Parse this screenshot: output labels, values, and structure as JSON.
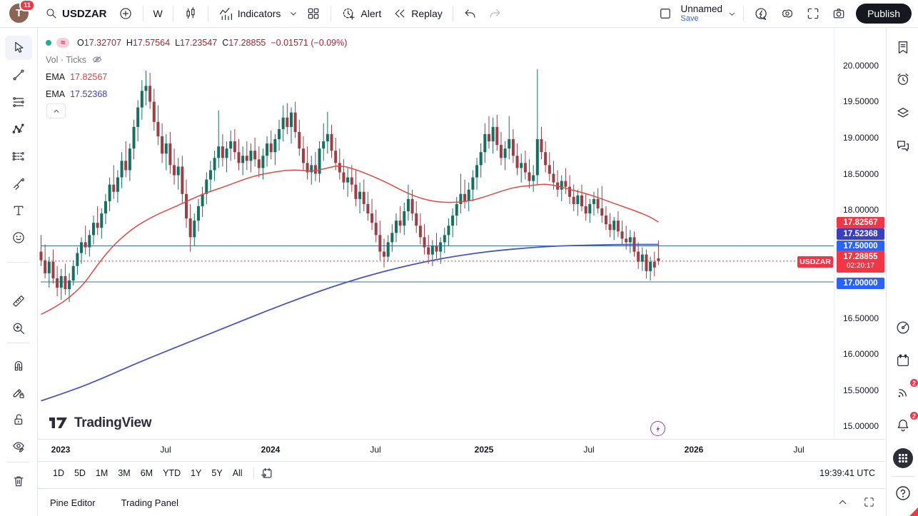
{
  "header": {
    "avatar_initial": "T",
    "notification_count": "11",
    "symbol": "USDZAR",
    "timeframe": "W",
    "indicators_label": "Indicators",
    "alert_label": "Alert",
    "replay_label": "Replay",
    "layout_name": "Unnamed",
    "save_label": "Save",
    "publish_label": "Publish"
  },
  "legend": {
    "ohlc": {
      "o_label": "O",
      "o": "17.32707",
      "h_label": "H",
      "h": "17.57564",
      "l_label": "L",
      "l": "17.23547",
      "c_label": "C",
      "c": "17.28855",
      "change": "−0.01571 (−0.09%)",
      "approx_badge": "≈"
    },
    "volume_label": "Vol · Ticks",
    "ema1_label": "EMA",
    "ema1_value": "17.82567",
    "ema2_label": "EMA",
    "ema2_value": "17.52368"
  },
  "watermark_text": "TradingView",
  "price_scale": {
    "ticks": [
      "20.00000",
      "19.50000",
      "19.00000",
      "18.50000",
      "18.00000",
      "16.50000",
      "16.00000",
      "15.50000",
      "15.00000"
    ],
    "ema_red_label": "17.82567",
    "ema_blue_label": "17.52368",
    "hline_upper_label": "17.50000",
    "hline_lower_label": "17.00000",
    "symbol_badge": "USDZAR",
    "last_price": "17.28855",
    "countdown": "02:20:17"
  },
  "time_axis": {
    "labels": [
      "2023",
      "Jul",
      "2024",
      "Jul",
      "2025",
      "Jul",
      "2026",
      "Jul"
    ]
  },
  "range_toolbar": {
    "items": [
      "1D",
      "5D",
      "1M",
      "3M",
      "6M",
      "YTD",
      "1Y",
      "5Y",
      "All"
    ],
    "clock": "19:39:41 UTC"
  },
  "status_bar": {
    "pine_tab": "Pine Editor",
    "trading_tab": "Trading Panel"
  },
  "sidebar_badges": {
    "ideas": "2",
    "notifications": "2"
  },
  "colors": {
    "accent_blue": "#2962ff",
    "alert_red": "#f23645",
    "ema_blue_label_bg": "#3a3fbf",
    "candle_up": "#156f62",
    "candle_down": "#9c3f44",
    "ema_red_line": "#e04a43",
    "ema_blue_line": "#4853c4",
    "hline_blue": "#3b6e9e",
    "event_purple": "#9c3fb0"
  },
  "chart_data": {
    "type": "candlestick",
    "symbol": "USDZAR",
    "timeframe": "1W",
    "title": "USDZAR weekly candlestick chart with two EMAs",
    "price_axis": {
      "min": 15.0,
      "max": 20.0,
      "tick_step": 0.5
    },
    "time_labels": [
      "2023",
      "Jul",
      "2024",
      "Jul",
      "2025",
      "Jul",
      "2026",
      "Jul"
    ],
    "last_bar": {
      "open": 17.32707,
      "high": 17.57564,
      "low": 17.23547,
      "close": 17.28855,
      "change": -0.01571,
      "change_pct": -0.09
    },
    "horizontal_lines": [
      17.5,
      17.0
    ],
    "last_price_line": 17.28855,
    "countdown": "02:20:17",
    "ema_red_value": 17.82567,
    "ema_blue_value": 17.52368,
    "ema_red_points": [
      [
        0,
        16.55
      ],
      [
        8,
        16.76
      ],
      [
        16,
        17.4
      ],
      [
        22,
        17.72
      ],
      [
        28,
        17.92
      ],
      [
        34,
        18.06
      ],
      [
        40,
        18.22
      ],
      [
        46,
        18.33
      ],
      [
        52,
        18.46
      ],
      [
        58,
        18.53
      ],
      [
        63,
        18.56
      ],
      [
        67,
        18.53
      ],
      [
        71,
        18.58
      ],
      [
        74,
        18.62
      ],
      [
        78,
        18.56
      ],
      [
        82,
        18.47
      ],
      [
        86,
        18.37
      ],
      [
        90,
        18.25
      ],
      [
        94,
        18.16
      ],
      [
        98,
        18.11
      ],
      [
        102,
        18.1
      ],
      [
        106,
        18.12
      ],
      [
        110,
        18.18
      ],
      [
        114,
        18.26
      ],
      [
        118,
        18.32
      ],
      [
        122,
        18.34
      ],
      [
        125,
        18.36
      ],
      [
        128,
        18.33
      ],
      [
        132,
        18.27
      ],
      [
        136,
        18.21
      ],
      [
        140,
        18.13
      ],
      [
        144,
        18.05
      ],
      [
        148,
        17.97
      ],
      [
        151,
        17.9
      ],
      [
        153,
        17.83
      ]
    ],
    "ema_blue_points": [
      [
        0,
        15.35
      ],
      [
        8,
        15.5
      ],
      [
        16,
        15.68
      ],
      [
        24,
        15.88
      ],
      [
        32,
        16.06
      ],
      [
        40,
        16.24
      ],
      [
        48,
        16.42
      ],
      [
        56,
        16.6
      ],
      [
        64,
        16.77
      ],
      [
        72,
        16.93
      ],
      [
        80,
        17.07
      ],
      [
        88,
        17.19
      ],
      [
        96,
        17.29
      ],
      [
        104,
        17.37
      ],
      [
        112,
        17.43
      ],
      [
        120,
        17.47
      ],
      [
        128,
        17.5
      ],
      [
        136,
        17.51
      ],
      [
        144,
        17.52
      ],
      [
        153,
        17.52
      ]
    ],
    "candles": [
      [
        17.42,
        17.65,
        17.22,
        17.3
      ],
      [
        17.3,
        17.52,
        17.05,
        17.12
      ],
      [
        17.12,
        17.35,
        16.92,
        17.28
      ],
      [
        17.28,
        17.45,
        16.98,
        17.05
      ],
      [
        17.05,
        17.22,
        16.8,
        16.92
      ],
      [
        16.92,
        17.18,
        16.75,
        17.08
      ],
      [
        17.08,
        17.25,
        16.82,
        16.9
      ],
      [
        16.9,
        17.12,
        16.72,
        17.02
      ],
      [
        17.02,
        17.3,
        16.95,
        17.22
      ],
      [
        17.22,
        17.48,
        17.1,
        17.4
      ],
      [
        17.4,
        17.62,
        17.25,
        17.55
      ],
      [
        17.55,
        17.78,
        17.38,
        17.48
      ],
      [
        17.48,
        17.72,
        17.35,
        17.65
      ],
      [
        17.65,
        17.92,
        17.52,
        17.82
      ],
      [
        17.82,
        18.05,
        17.65,
        17.75
      ],
      [
        17.75,
        18.02,
        17.6,
        17.95
      ],
      [
        17.95,
        18.22,
        17.8,
        18.12
      ],
      [
        18.12,
        18.45,
        17.98,
        18.35
      ],
      [
        18.35,
        18.62,
        18.15,
        18.25
      ],
      [
        18.25,
        18.55,
        18.1,
        18.45
      ],
      [
        18.45,
        18.8,
        18.3,
        18.68
      ],
      [
        18.68,
        18.95,
        18.45,
        18.55
      ],
      [
        18.55,
        18.92,
        18.4,
        18.85
      ],
      [
        18.85,
        19.25,
        18.7,
        19.15
      ],
      [
        19.15,
        19.52,
        18.95,
        19.42
      ],
      [
        19.42,
        19.8,
        19.25,
        19.65
      ],
      [
        19.65,
        19.93,
        19.45,
        19.72
      ],
      [
        19.72,
        19.9,
        19.4,
        19.5
      ],
      [
        19.5,
        19.68,
        19.1,
        19.22
      ],
      [
        19.22,
        19.45,
        18.9,
        19.02
      ],
      [
        19.02,
        19.2,
        18.65,
        18.78
      ],
      [
        18.78,
        19.05,
        18.55,
        18.92
      ],
      [
        18.92,
        19.08,
        18.5,
        18.62
      ],
      [
        18.62,
        18.85,
        18.35,
        18.48
      ],
      [
        18.48,
        18.72,
        18.28,
        18.6
      ],
      [
        18.6,
        18.75,
        18.1,
        18.22
      ],
      [
        18.22,
        18.42,
        17.75,
        17.88
      ],
      [
        17.88,
        18.08,
        17.42,
        17.62
      ],
      [
        17.62,
        17.95,
        17.5,
        17.85
      ],
      [
        17.85,
        18.15,
        17.7,
        18.05
      ],
      [
        18.05,
        18.32,
        17.9,
        18.22
      ],
      [
        18.22,
        18.52,
        18.08,
        18.42
      ],
      [
        18.42,
        18.68,
        18.25,
        18.55
      ],
      [
        18.55,
        18.82,
        18.4,
        18.72
      ],
      [
        18.72,
        19.38,
        18.58,
        18.88
      ],
      [
        18.88,
        19.05,
        18.6,
        18.72
      ],
      [
        18.72,
        18.95,
        18.52,
        18.85
      ],
      [
        18.85,
        19.1,
        18.68,
        18.95
      ],
      [
        18.95,
        19.12,
        18.7,
        18.8
      ],
      [
        18.8,
        18.98,
        18.55,
        18.65
      ],
      [
        18.65,
        18.88,
        18.48,
        18.75
      ],
      [
        18.75,
        18.95,
        18.55,
        18.68
      ],
      [
        18.68,
        18.92,
        18.52,
        18.82
      ],
      [
        18.82,
        19.0,
        18.6,
        18.7
      ],
      [
        18.7,
        18.88,
        18.45,
        18.58
      ],
      [
        18.58,
        18.85,
        18.42,
        18.75
      ],
      [
        18.75,
        19.02,
        18.6,
        18.92
      ],
      [
        18.92,
        19.1,
        18.7,
        18.8
      ],
      [
        18.8,
        19.05,
        18.62,
        18.98
      ],
      [
        18.98,
        19.25,
        18.82,
        19.12
      ],
      [
        19.12,
        19.45,
        18.95,
        19.28
      ],
      [
        19.28,
        19.48,
        19.05,
        19.15
      ],
      [
        19.15,
        19.42,
        18.92,
        19.35
      ],
      [
        19.35,
        19.5,
        19.0,
        19.08
      ],
      [
        19.08,
        19.25,
        18.75,
        18.85
      ],
      [
        18.85,
        19.02,
        18.55,
        18.65
      ],
      [
        18.65,
        18.88,
        18.42,
        18.52
      ],
      [
        18.52,
        18.75,
        18.35,
        18.62
      ],
      [
        18.62,
        18.8,
        18.4,
        18.5
      ],
      [
        18.5,
        18.95,
        18.38,
        18.85
      ],
      [
        18.85,
        19.2,
        18.68,
        18.95
      ],
      [
        18.95,
        19.36,
        18.78,
        19.05
      ],
      [
        19.05,
        19.18,
        18.72,
        18.82
      ],
      [
        18.82,
        19.0,
        18.55,
        18.65
      ],
      [
        18.65,
        18.85,
        18.42,
        18.52
      ],
      [
        18.52,
        18.7,
        18.28,
        18.38
      ],
      [
        18.38,
        18.58,
        18.18,
        18.45
      ],
      [
        18.45,
        18.62,
        18.25,
        18.35
      ],
      [
        18.35,
        18.55,
        18.05,
        18.15
      ],
      [
        18.15,
        18.38,
        17.95,
        18.25
      ],
      [
        18.25,
        18.42,
        17.98,
        18.08
      ],
      [
        18.08,
        18.25,
        17.85,
        17.95
      ],
      [
        17.95,
        18.15,
        17.72,
        17.82
      ],
      [
        17.82,
        18.0,
        17.55,
        17.65
      ],
      [
        17.65,
        17.85,
        17.3,
        17.42
      ],
      [
        17.42,
        17.6,
        17.2,
        17.35
      ],
      [
        17.35,
        17.65,
        17.28,
        17.55
      ],
      [
        17.55,
        17.8,
        17.42,
        17.68
      ],
      [
        17.68,
        17.95,
        17.55,
        17.85
      ],
      [
        17.85,
        18.05,
        17.68,
        17.78
      ],
      [
        17.78,
        18.1,
        17.65,
        17.98
      ],
      [
        17.98,
        18.35,
        17.85,
        18.15
      ],
      [
        18.15,
        18.28,
        17.85,
        17.95
      ],
      [
        17.95,
        18.12,
        17.68,
        17.78
      ],
      [
        17.78,
        17.95,
        17.52,
        17.62
      ],
      [
        17.62,
        17.8,
        17.38,
        17.48
      ],
      [
        17.48,
        17.65,
        17.25,
        17.38
      ],
      [
        17.38,
        17.58,
        17.22,
        17.5
      ],
      [
        17.5,
        17.68,
        17.32,
        17.42
      ],
      [
        17.42,
        17.62,
        17.25,
        17.55
      ],
      [
        17.55,
        17.75,
        17.4,
        17.65
      ],
      [
        17.65,
        17.88,
        17.5,
        17.78
      ],
      [
        17.78,
        18.02,
        17.62,
        17.92
      ],
      [
        17.92,
        18.18,
        17.78,
        18.08
      ],
      [
        18.08,
        18.5,
        17.95,
        18.22
      ],
      [
        18.22,
        18.42,
        18.02,
        18.12
      ],
      [
        18.12,
        18.38,
        17.98,
        18.28
      ],
      [
        18.28,
        18.55,
        18.12,
        18.45
      ],
      [
        18.45,
        18.72,
        18.28,
        18.62
      ],
      [
        18.62,
        18.92,
        18.45,
        18.8
      ],
      [
        18.8,
        19.2,
        18.65,
        19.05
      ],
      [
        19.05,
        19.3,
        18.85,
        18.95
      ],
      [
        18.95,
        19.28,
        18.78,
        19.15
      ],
      [
        19.15,
        19.32,
        18.82,
        18.9
      ],
      [
        18.9,
        19.08,
        18.62,
        18.72
      ],
      [
        18.72,
        18.95,
        18.55,
        18.85
      ],
      [
        18.85,
        19.3,
        18.7,
        18.98
      ],
      [
        18.98,
        19.12,
        18.65,
        18.75
      ],
      [
        18.75,
        18.92,
        18.48,
        18.58
      ],
      [
        18.58,
        18.78,
        18.38,
        18.65
      ],
      [
        18.65,
        18.82,
        18.42,
        18.52
      ],
      [
        18.52,
        18.7,
        18.3,
        18.4
      ],
      [
        18.4,
        18.62,
        18.25,
        18.48
      ],
      [
        18.48,
        19.95,
        18.35,
        18.98
      ],
      [
        18.98,
        19.15,
        18.7,
        18.8
      ],
      [
        18.8,
        18.95,
        18.52,
        18.62
      ],
      [
        18.62,
        18.8,
        18.4,
        18.5
      ],
      [
        18.5,
        18.68,
        18.28,
        18.38
      ],
      [
        18.38,
        18.55,
        18.18,
        18.28
      ],
      [
        18.28,
        18.48,
        18.12,
        18.4
      ],
      [
        18.4,
        18.58,
        18.22,
        18.32
      ],
      [
        18.32,
        18.48,
        18.08,
        18.18
      ],
      [
        18.18,
        18.35,
        17.98,
        18.08
      ],
      [
        18.08,
        18.28,
        17.92,
        18.2
      ],
      [
        18.2,
        18.35,
        17.98,
        18.05
      ],
      [
        18.05,
        18.22,
        17.85,
        17.95
      ],
      [
        17.95,
        18.15,
        17.82,
        18.08
      ],
      [
        18.08,
        18.25,
        17.92,
        18.15
      ],
      [
        18.15,
        18.3,
        17.95,
        18.02
      ],
      [
        18.02,
        18.33,
        17.82,
        17.92
      ],
      [
        17.92,
        18.05,
        17.72,
        17.8
      ],
      [
        17.8,
        17.95,
        17.62,
        17.72
      ],
      [
        17.72,
        17.9,
        17.58,
        17.85
      ],
      [
        17.85,
        17.98,
        17.62,
        17.7
      ],
      [
        17.7,
        17.85,
        17.52,
        17.6
      ],
      [
        17.6,
        17.78,
        17.45,
        17.55
      ],
      [
        17.55,
        17.72,
        17.4,
        17.62
      ],
      [
        17.62,
        17.7,
        17.35,
        17.42
      ],
      [
        17.42,
        17.55,
        17.18,
        17.28
      ],
      [
        17.28,
        17.48,
        17.15,
        17.38
      ],
      [
        17.38,
        17.45,
        17.05,
        17.15
      ],
      [
        17.15,
        17.35,
        17.02,
        17.28
      ],
      [
        17.28,
        17.42,
        17.08,
        17.2
      ],
      [
        17.327,
        17.576,
        17.235,
        17.289
      ]
    ]
  }
}
